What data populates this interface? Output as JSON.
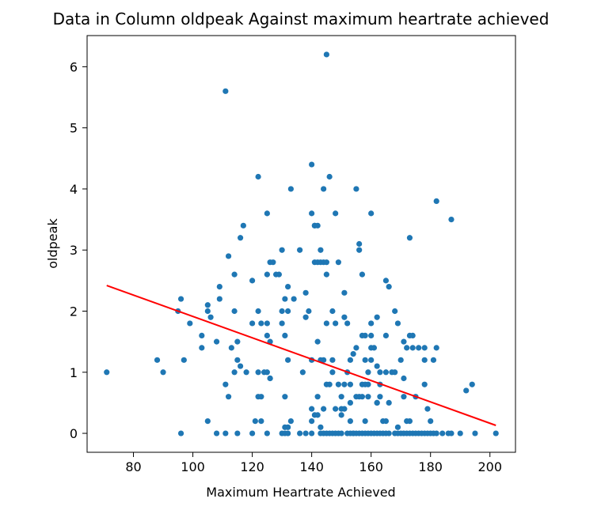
{
  "chart_data": {
    "type": "scatter",
    "title": "Data in Column oldpeak Against maximum heartrate achieved",
    "xlabel": "Maximum Heartrate Achieved",
    "ylabel": "oldpeak",
    "xlim": [
      64.4,
      208.6
    ],
    "ylim": [
      -0.31,
      6.51
    ],
    "xticks": [
      80,
      100,
      120,
      140,
      160,
      180,
      200
    ],
    "yticks": [
      0,
      1,
      2,
      3,
      4,
      5,
      6
    ],
    "grid": false,
    "colors": {
      "points": "#1f77b4",
      "fit_line": "#ff0000"
    },
    "points": [
      [
        71,
        1.0
      ],
      [
        88,
        1.2
      ],
      [
        90,
        1.0
      ],
      [
        95,
        2.0
      ],
      [
        96,
        2.2
      ],
      [
        96,
        0.0
      ],
      [
        97,
        1.2
      ],
      [
        99,
        1.8
      ],
      [
        103,
        1.4
      ],
      [
        103,
        1.6
      ],
      [
        105,
        2.1
      ],
      [
        105,
        2.0
      ],
      [
        105,
        0.2
      ],
      [
        106,
        1.9
      ],
      [
        108,
        1.5
      ],
      [
        108,
        0.0
      ],
      [
        109,
        2.4
      ],
      [
        109,
        2.2
      ],
      [
        111,
        0.8
      ],
      [
        111,
        5.6
      ],
      [
        111,
        0.0
      ],
      [
        112,
        2.9
      ],
      [
        112,
        0.6
      ],
      [
        113,
        1.4
      ],
      [
        114,
        2.0
      ],
      [
        114,
        2.6
      ],
      [
        114,
        1.0
      ],
      [
        115,
        1.2
      ],
      [
        115,
        1.5
      ],
      [
        115,
        0.0
      ],
      [
        116,
        3.2
      ],
      [
        116,
        1.1
      ],
      [
        117,
        3.4
      ],
      [
        118,
        1.0
      ],
      [
        120,
        1.8
      ],
      [
        120,
        2.5
      ],
      [
        120,
        0.0
      ],
      [
        121,
        0.2
      ],
      [
        122,
        1.0
      ],
      [
        122,
        4.2
      ],
      [
        122,
        2.0
      ],
      [
        122,
        0.6
      ],
      [
        123,
        0.6
      ],
      [
        123,
        0.2
      ],
      [
        123,
        1.8
      ],
      [
        124,
        1.0
      ],
      [
        125,
        3.6
      ],
      [
        125,
        2.6
      ],
      [
        125,
        1.6
      ],
      [
        125,
        1.8
      ],
      [
        125,
        1.0
      ],
      [
        125,
        0.0
      ],
      [
        126,
        2.8
      ],
      [
        126,
        1.5
      ],
      [
        126,
        0.9
      ],
      [
        126,
        0.9
      ],
      [
        127,
        2.8
      ],
      [
        128,
        2.6
      ],
      [
        129,
        2.6
      ],
      [
        130,
        0.0
      ],
      [
        130,
        2.0
      ],
      [
        130,
        1.8
      ],
      [
        130,
        3.0
      ],
      [
        131,
        2.2
      ],
      [
        131,
        0.1
      ],
      [
        131,
        1.6
      ],
      [
        131,
        0.6
      ],
      [
        131,
        0.0
      ],
      [
        132,
        0.1
      ],
      [
        132,
        2.4
      ],
      [
        132,
        1.2
      ],
      [
        132,
        0.0
      ],
      [
        132,
        2.0
      ],
      [
        133,
        4.0
      ],
      [
        133,
        0.2
      ],
      [
        134,
        2.2
      ],
      [
        136,
        3.0
      ],
      [
        136,
        0.0
      ],
      [
        137,
        1.0
      ],
      [
        138,
        2.3
      ],
      [
        138,
        1.9
      ],
      [
        138,
        0.0
      ],
      [
        139,
        2.0
      ],
      [
        140,
        0.2
      ],
      [
        140,
        4.4
      ],
      [
        140,
        3.6
      ],
      [
        140,
        1.2
      ],
      [
        140,
        0.0
      ],
      [
        140,
        0.4
      ],
      [
        141,
        3.4
      ],
      [
        141,
        3.4
      ],
      [
        141,
        2.8
      ],
      [
        141,
        0.3
      ],
      [
        142,
        3.4
      ],
      [
        142,
        2.8
      ],
      [
        142,
        1.5
      ],
      [
        142,
        0.6
      ],
      [
        142,
        0.3
      ],
      [
        143,
        3.0
      ],
      [
        143,
        2.8
      ],
      [
        143,
        1.2
      ],
      [
        143,
        0.1
      ],
      [
        143,
        0.0
      ],
      [
        144,
        2.8
      ],
      [
        144,
        4.0
      ],
      [
        144,
        1.2
      ],
      [
        144,
        0.4
      ],
      [
        144,
        0.0
      ],
      [
        145,
        6.2
      ],
      [
        145,
        2.8
      ],
      [
        145,
        2.6
      ],
      [
        145,
        1.8
      ],
      [
        145,
        0.8
      ],
      [
        145,
        0.0
      ],
      [
        146,
        4.2
      ],
      [
        146,
        0.8
      ],
      [
        146,
        0.0
      ],
      [
        147,
        2.0
      ],
      [
        147,
        1.2
      ],
      [
        147,
        1.0
      ],
      [
        147,
        0.0
      ],
      [
        148,
        3.6
      ],
      [
        148,
        1.8
      ],
      [
        148,
        0.4
      ],
      [
        148,
        0.0
      ],
      [
        149,
        2.8
      ],
      [
        149,
        0.8
      ],
      [
        149,
        0.0
      ],
      [
        150,
        0.4
      ],
      [
        150,
        0.3
      ],
      [
        150,
        0.0
      ],
      [
        150,
        0.6
      ],
      [
        151,
        2.3
      ],
      [
        151,
        1.9
      ],
      [
        151,
        0.8
      ],
      [
        151,
        0.4
      ],
      [
        152,
        1.8
      ],
      [
        152,
        1.0
      ],
      [
        152,
        0.0
      ],
      [
        153,
        0.8
      ],
      [
        153,
        0.5
      ],
      [
        153,
        1.2
      ],
      [
        153,
        0.2
      ],
      [
        153,
        0.0
      ],
      [
        154,
        0.0
      ],
      [
        154,
        1.3
      ],
      [
        154,
        0.0
      ],
      [
        155,
        4.0
      ],
      [
        155,
        1.4
      ],
      [
        155,
        0.6
      ],
      [
        155,
        0.0
      ],
      [
        156,
        3.0
      ],
      [
        156,
        3.1
      ],
      [
        156,
        0.6
      ],
      [
        156,
        0.0
      ],
      [
        157,
        2.6
      ],
      [
        157,
        1.6
      ],
      [
        157,
        0.8
      ],
      [
        157,
        0.6
      ],
      [
        157,
        0.0
      ],
      [
        158,
        1.6
      ],
      [
        158,
        1.2
      ],
      [
        158,
        0.8
      ],
      [
        158,
        0.2
      ],
      [
        158,
        0.0
      ],
      [
        159,
        0.8
      ],
      [
        159,
        0.6
      ],
      [
        159,
        1.0
      ],
      [
        159,
        0.0
      ],
      [
        160,
        3.6
      ],
      [
        160,
        1.8
      ],
      [
        160,
        1.4
      ],
      [
        160,
        1.2
      ],
      [
        160,
        0.0
      ],
      [
        160,
        1.6
      ],
      [
        161,
        1.4
      ],
      [
        161,
        0.0
      ],
      [
        162,
        1.9
      ],
      [
        162,
        1.1
      ],
      [
        162,
        0.5
      ],
      [
        162,
        0.5
      ],
      [
        162,
        0.0
      ],
      [
        163,
        0.8
      ],
      [
        163,
        1.0
      ],
      [
        163,
        0.6
      ],
      [
        163,
        0.0
      ],
      [
        164,
        0.2
      ],
      [
        164,
        0.0
      ],
      [
        165,
        1.6
      ],
      [
        165,
        2.5
      ],
      [
        165,
        1.0
      ],
      [
        165,
        0.2
      ],
      [
        165,
        0.0
      ],
      [
        166,
        2.4
      ],
      [
        166,
        0.5
      ],
      [
        166,
        0.0
      ],
      [
        167,
        1.0
      ],
      [
        168,
        2.0
      ],
      [
        168,
        1.0
      ],
      [
        168,
        0.0
      ],
      [
        169,
        1.8
      ],
      [
        169,
        0.1
      ],
      [
        169,
        0.0
      ],
      [
        170,
        1.2
      ],
      [
        170,
        0.0
      ],
      [
        171,
        0.9
      ],
      [
        171,
        1.5
      ],
      [
        171,
        0.6
      ],
      [
        171,
        0.0
      ],
      [
        172,
        1.4
      ],
      [
        172,
        0.2
      ],
      [
        172,
        0.0
      ],
      [
        173,
        3.2
      ],
      [
        173,
        1.6
      ],
      [
        173,
        0.2
      ],
      [
        173,
        0.0
      ],
      [
        174,
        1.6
      ],
      [
        174,
        1.4
      ],
      [
        174,
        0.0
      ],
      [
        175,
        0.6
      ],
      [
        175,
        0.0
      ],
      [
        176,
        1.4
      ],
      [
        176,
        0.0
      ],
      [
        177,
        0.0
      ],
      [
        178,
        1.4
      ],
      [
        178,
        0.8
      ],
      [
        178,
        1.2
      ],
      [
        178,
        0.0
      ],
      [
        179,
        0.4
      ],
      [
        179,
        0.0
      ],
      [
        180,
        0.2
      ],
      [
        180,
        0.0
      ],
      [
        181,
        1.2
      ],
      [
        181,
        0.0
      ],
      [
        182,
        3.8
      ],
      [
        182,
        1.4
      ],
      [
        182,
        0.0
      ],
      [
        184,
        0.0
      ],
      [
        186,
        0.0
      ],
      [
        187,
        3.5
      ],
      [
        187,
        0.0
      ],
      [
        190,
        0.0
      ],
      [
        192,
        0.7
      ],
      [
        194,
        0.8
      ],
      [
        195,
        0.0
      ],
      [
        202,
        0.0
      ]
    ],
    "fit_line": {
      "x": [
        71,
        202
      ],
      "y": [
        2.42,
        0.13
      ]
    }
  }
}
